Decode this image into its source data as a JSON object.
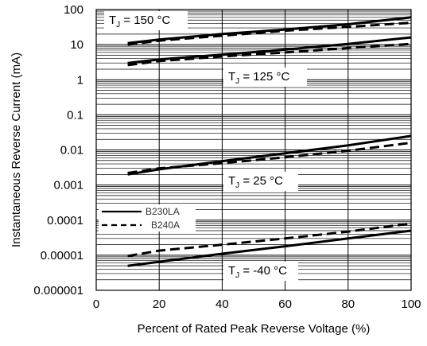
{
  "chart_data": {
    "type": "line",
    "title": "",
    "xlabel": "Percent of Rated Peak Reverse Voltage (%)",
    "ylabel": "Instantaneous Reverse Current (mA)",
    "xlim": [
      0,
      100
    ],
    "ylim": [
      1e-06,
      100
    ],
    "yscale": "log",
    "grid": true,
    "legend_position": "left",
    "x_ticks": [
      "0",
      "20",
      "40",
      "60",
      "80",
      "100"
    ],
    "y_ticks": [
      "0.000001",
      "0.00001",
      "0.0001",
      "0.001",
      "0.01",
      "0.1",
      "1",
      "10",
      "100"
    ],
    "legend": [
      {
        "name": "B230LA",
        "style": "solid"
      },
      {
        "name": "B240A",
        "style": "dashed"
      }
    ],
    "annotations": [
      {
        "label": "T",
        "sub": "J",
        "rest": " = 150 °C"
      },
      {
        "label": "T",
        "sub": "J",
        "rest": " = 125 °C"
      },
      {
        "label": "T",
        "sub": "J",
        "rest": " = 25 °C"
      },
      {
        "label": "T",
        "sub": "J",
        "rest": " = -40 °C"
      }
    ],
    "series": [
      {
        "style": "solid",
        "temperature": "150 °C",
        "x": [
          10,
          20,
          40,
          60,
          80,
          100
        ],
        "y": [
          11,
          14,
          20,
          27,
          38,
          60
        ]
      },
      {
        "style": "dashed",
        "temperature": "150 °C",
        "x": [
          10,
          20,
          40,
          60,
          80,
          100
        ],
        "y": [
          10,
          13,
          18,
          25,
          32,
          42
        ]
      },
      {
        "style": "solid",
        "temperature": "125 °C",
        "x": [
          10,
          20,
          40,
          60,
          80,
          100
        ],
        "y": [
          3,
          3.8,
          5.2,
          7.2,
          10.5,
          16
        ]
      },
      {
        "style": "dashed",
        "temperature": "125 °C",
        "x": [
          10,
          20,
          40,
          60,
          80,
          100
        ],
        "y": [
          2.6,
          3.4,
          4.6,
          6,
          8,
          10.5
        ]
      },
      {
        "style": "solid",
        "temperature": "25 °C",
        "x": [
          10,
          20,
          40,
          60,
          80,
          100
        ],
        "y": [
          0.002,
          0.0028,
          0.0048,
          0.008,
          0.0135,
          0.025
        ]
      },
      {
        "style": "dashed",
        "temperature": "25 °C",
        "x": [
          10,
          20,
          40,
          60,
          80,
          100
        ],
        "y": [
          0.0022,
          0.003,
          0.0042,
          0.0062,
          0.0095,
          0.016
        ]
      },
      {
        "style": "solid",
        "temperature": "-40 °C",
        "x": [
          10,
          20,
          40,
          60,
          80,
          100
        ],
        "y": [
          5e-06,
          6.5e-06,
          1.1e-05,
          1.8e-05,
          3e-05,
          5e-05
        ]
      },
      {
        "style": "dashed",
        "temperature": "-40 °C",
        "x": [
          10,
          20,
          40,
          60,
          80,
          100
        ],
        "y": [
          9.5e-06,
          1.35e-05,
          2e-05,
          3e-05,
          4.7e-05,
          8e-05
        ]
      }
    ]
  }
}
